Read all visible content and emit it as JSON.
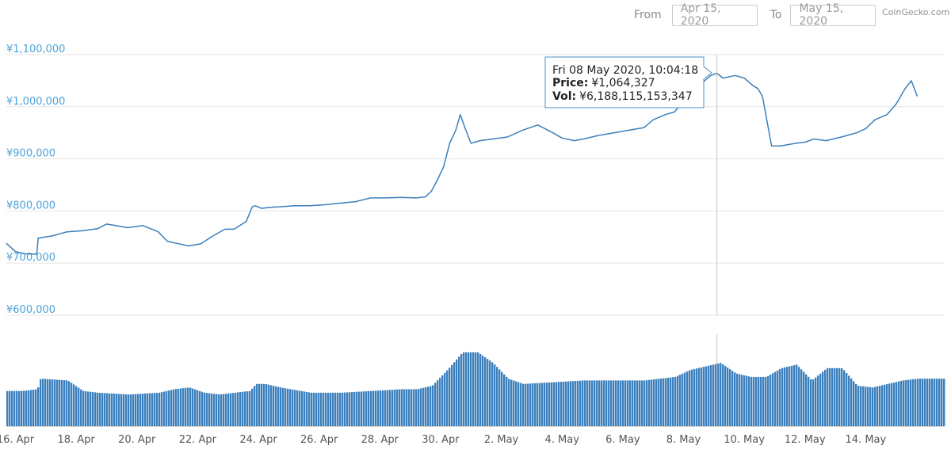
{
  "range": {
    "from_label": "From",
    "from_value": "Apr 15, 2020",
    "to_label": "To",
    "to_value": "May 15, 2020"
  },
  "credit": "CoinGecko.com",
  "colors": {
    "line": "#3b7fbc",
    "axis_label": "#4ca3d9",
    "grid": "#e6e6e6",
    "volume": "#3b7fbc",
    "crosshair": "#c8c8c8",
    "tooltip_border": "#4a90c8"
  },
  "tooltip": {
    "date": "Fri 08 May 2020, 10:04:18",
    "price_label": "Price:",
    "price_value": "¥1,064,327",
    "vol_label": "Vol:",
    "vol_value": "¥6,188,115,153,347",
    "x_day": 23.4
  },
  "chart_data": {
    "type": "line",
    "y_axis": {
      "ylim": [
        600000,
        1100000
      ],
      "ticks": [
        "¥1,100,000",
        "¥1,000,000",
        "¥900,000",
        "¥800,000",
        "¥700,000",
        "¥600,000"
      ],
      "tick_values": [
        1100000,
        1000000,
        900000,
        800000,
        700000,
        600000
      ]
    },
    "x_axis": {
      "range_days": [
        0.0,
        30.9
      ],
      "tick_labels": [
        "16. Apr",
        "18. Apr",
        "20. Apr",
        "22. Apr",
        "24. Apr",
        "26. Apr",
        "28. Apr",
        "30. Apr",
        "2. May",
        "4. May",
        "6. May",
        "8. May",
        "10. May",
        "12. May",
        "14. May"
      ],
      "tick_days": [
        0.3,
        2.3,
        4.3,
        6.3,
        8.3,
        10.3,
        12.3,
        14.3,
        16.3,
        18.3,
        20.3,
        22.3,
        24.3,
        26.3,
        28.3
      ]
    },
    "price_series": {
      "name": "Price",
      "x": [
        0.0,
        0.3,
        0.6,
        1.0,
        1.05,
        1.5,
        2.0,
        2.5,
        3.0,
        3.3,
        3.6,
        4.0,
        4.5,
        5.0,
        5.3,
        5.6,
        6.0,
        6.4,
        6.8,
        7.2,
        7.5,
        7.9,
        8.1,
        8.2,
        8.4,
        8.7,
        9.0,
        9.5,
        10.0,
        10.5,
        11.0,
        11.5,
        12.0,
        12.5,
        13.0,
        13.5,
        13.8,
        14.0,
        14.2,
        14.4,
        14.6,
        14.8,
        14.95,
        15.1,
        15.3,
        15.6,
        16.0,
        16.5,
        17.0,
        17.5,
        18.0,
        18.3,
        18.7,
        19.0,
        19.5,
        20.0,
        20.5,
        21.0,
        21.3,
        21.7,
        22.0,
        22.3,
        22.6,
        22.9,
        23.2,
        23.4,
        23.6,
        24.0,
        24.3,
        24.6,
        24.75,
        24.9,
        25.2,
        25.5,
        26.0,
        26.3,
        26.6,
        27.0,
        27.5,
        28.0,
        28.3,
        28.6,
        29.0,
        29.3,
        29.6,
        29.8,
        30.0
      ],
      "y": [
        738000,
        722000,
        718000,
        717000,
        748000,
        752000,
        760000,
        762000,
        766000,
        775000,
        772000,
        768000,
        772000,
        760000,
        742000,
        738000,
        733000,
        737000,
        752000,
        765000,
        765000,
        780000,
        808000,
        810000,
        805000,
        807000,
        808000,
        810000,
        810000,
        812000,
        815000,
        818000,
        825000,
        825000,
        826000,
        825000,
        827000,
        838000,
        860000,
        885000,
        930000,
        955000,
        985000,
        960000,
        930000,
        935000,
        938000,
        942000,
        955000,
        965000,
        950000,
        940000,
        935000,
        938000,
        945000,
        950000,
        955000,
        960000,
        975000,
        985000,
        990000,
        1010000,
        1035000,
        1045000,
        1060000,
        1064327,
        1055000,
        1060000,
        1055000,
        1040000,
        1035000,
        1020000,
        925000,
        925000,
        930000,
        932000,
        938000,
        935000,
        942000,
        950000,
        958000,
        975000,
        985000,
        1005000,
        1035000,
        1050000,
        1020000
      ]
    },
    "volume_series": {
      "name": "Vol",
      "x": [
        0.0,
        0.5,
        1.0,
        1.1,
        2.0,
        2.5,
        3.0,
        4.0,
        5.0,
        5.5,
        6.0,
        6.5,
        7.0,
        7.5,
        8.0,
        8.2,
        8.5,
        9.0,
        10.0,
        11.0,
        12.0,
        13.0,
        13.5,
        14.0,
        14.5,
        15.0,
        15.5,
        16.0,
        16.5,
        17.0,
        18.0,
        19.0,
        20.0,
        21.0,
        22.0,
        22.5,
        23.0,
        23.5,
        24.0,
        24.5,
        25.0,
        25.5,
        26.0,
        26.5,
        27.0,
        27.5,
        28.0,
        28.5,
        29.0,
        29.5,
        30.0,
        30.9
      ],
      "rel": [
        0.2,
        0.2,
        0.21,
        0.27,
        0.26,
        0.2,
        0.19,
        0.18,
        0.19,
        0.21,
        0.22,
        0.19,
        0.18,
        0.19,
        0.2,
        0.24,
        0.24,
        0.22,
        0.19,
        0.19,
        0.2,
        0.21,
        0.21,
        0.23,
        0.32,
        0.42,
        0.42,
        0.36,
        0.27,
        0.24,
        0.25,
        0.26,
        0.26,
        0.26,
        0.28,
        0.32,
        0.34,
        0.36,
        0.3,
        0.28,
        0.28,
        0.33,
        0.35,
        0.26,
        0.33,
        0.33,
        0.23,
        0.22,
        0.24,
        0.26,
        0.27,
        0.27
      ]
    }
  }
}
